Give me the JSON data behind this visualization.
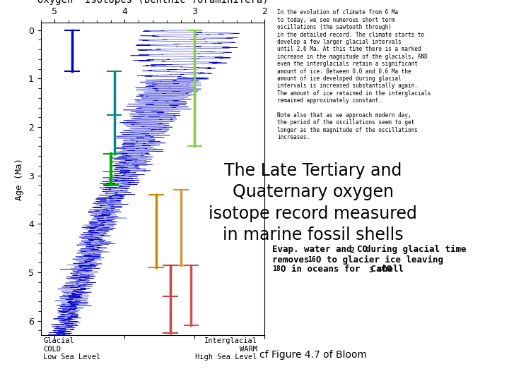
{
  "title": "Oxygen  Isotopes (benthic foraminifera)",
  "xlabel_left": "Glacial\nCOLD\nLow Sea Level",
  "xlabel_right": "Interglacial\nWARM\nHigh Sea Level",
  "ylabel": "Age (Ma)",
  "xlim": [
    5.2,
    2.0
  ],
  "ylim": [
    6.3,
    -0.15
  ],
  "xticks": [
    5,
    4,
    3,
    2
  ],
  "yticks": [
    0,
    1,
    2,
    3,
    4,
    5,
    6
  ],
  "background_color": "#ffffff",
  "plot_bg_color": "#ffffff",
  "line_color": "#0000cc",
  "title_fontsize": 10,
  "axis_label_fontsize": 9,
  "tick_fontsize": 9,
  "main_title": "The Late Tertiary and\nQuaternary oxygen\nisotope record measured\nin marine fossil shells",
  "caption": "cf Figure 4.7 of Bloom",
  "body_text": "In the evolution of climate from 6 Ma\nto today, we see numerous short term\noscillations (the sawtooth through)\nin the detailed record. The climate starts to\ndevelop a few larger glacial intervals\nuntil 2.6 Ma. At this time there is a marked\nincrease in the magnitude of the glacials, AND\neven the interglacials retain a significant\namount of ice. Between 0.0 and 0.6 Ma the\namount of ice developed during glacial\nintervals is increased substantially again.\nThe amount of ice retained in the interglacials\nremained approximately constant.\n\nNote also that as we approach modern day,\nthe period of the oscillations seem to get\nlonger as the magnitude of the oscillations\nincreases."
}
